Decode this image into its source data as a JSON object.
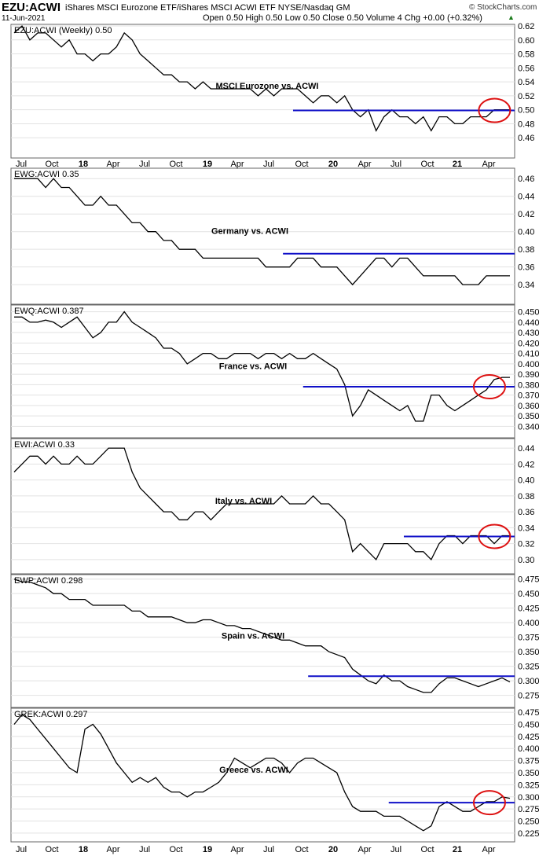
{
  "header": {
    "symbol": "EZU:ACWI",
    "description": "iShares MSCI Eurozone ETF/iShares MSCI ACWI ETF  NYSE/Nasdaq GM",
    "date": "11-Jun-2021",
    "ohlc": "Open 0.50   High 0.50   Low 0.50   Close 0.50   Volume 4   Chg +0.00 (+0.32%)",
    "brand": "© StockCharts.com",
    "change_icon": "up-triangle-icon"
  },
  "colors": {
    "price": "#000000",
    "resistance": "#1010c8",
    "highlight": "#dd1111",
    "grid": "#e2e2e2",
    "border": "#666666"
  },
  "x_axis_labels": [
    "Jul",
    "Oct",
    "18",
    "Apr",
    "Jul",
    "Oct",
    "19",
    "Apr",
    "Jul",
    "Oct",
    "20",
    "Apr",
    "Jul",
    "Oct",
    "21",
    "Apr"
  ],
  "chart_data": [
    {
      "type": "line",
      "legend": "EZU:ACWI (Weekly) 0.50",
      "title": "MSCI Eurozone vs. ACWI",
      "ylim": [
        0.44,
        0.62
      ],
      "yticks": [
        "0.62",
        "0.60",
        "0.58",
        "0.56",
        "0.54",
        "0.52",
        "0.50",
        "0.48",
        "0.46"
      ],
      "values": [
        0.61,
        0.62,
        0.6,
        0.61,
        0.61,
        0.6,
        0.59,
        0.6,
        0.58,
        0.58,
        0.57,
        0.58,
        0.58,
        0.59,
        0.61,
        0.6,
        0.58,
        0.57,
        0.56,
        0.55,
        0.55,
        0.54,
        0.54,
        0.53,
        0.54,
        0.53,
        0.53,
        0.53,
        0.53,
        0.53,
        0.53,
        0.52,
        0.53,
        0.52,
        0.53,
        0.53,
        0.53,
        0.52,
        0.51,
        0.52,
        0.52,
        0.51,
        0.52,
        0.5,
        0.49,
        0.5,
        0.47,
        0.49,
        0.5,
        0.49,
        0.49,
        0.48,
        0.49,
        0.47,
        0.49,
        0.49,
        0.48,
        0.48,
        0.49,
        0.49,
        0.49,
        0.5,
        0.5,
        0.5
      ],
      "resistance": {
        "from": 0.56,
        "to": 1.0,
        "value": 0.499
      },
      "highlight_at": 0.96
    },
    {
      "type": "line",
      "legend": "EWG:ACWI 0.35",
      "title": "Germany vs. ACWI",
      "ylim": [
        0.325,
        0.47
      ],
      "yticks": [
        "0.46",
        "0.44",
        "0.42",
        "0.40",
        "0.38",
        "0.36",
        "0.34"
      ],
      "values": [
        0.46,
        0.46,
        0.46,
        0.46,
        0.45,
        0.46,
        0.45,
        0.45,
        0.44,
        0.43,
        0.43,
        0.44,
        0.43,
        0.43,
        0.42,
        0.41,
        0.41,
        0.4,
        0.4,
        0.39,
        0.39,
        0.38,
        0.38,
        0.38,
        0.37,
        0.37,
        0.37,
        0.37,
        0.37,
        0.37,
        0.37,
        0.37,
        0.36,
        0.36,
        0.36,
        0.36,
        0.37,
        0.37,
        0.37,
        0.36,
        0.36,
        0.36,
        0.35,
        0.34,
        0.35,
        0.36,
        0.37,
        0.37,
        0.36,
        0.37,
        0.37,
        0.36,
        0.35,
        0.35,
        0.35,
        0.35,
        0.35,
        0.34,
        0.34,
        0.34,
        0.35,
        0.35,
        0.35,
        0.35
      ],
      "resistance": {
        "from": 0.54,
        "to": 1.0,
        "value": 0.375
      },
      "highlight_at": null
    },
    {
      "type": "line",
      "legend": "EWQ:ACWI 0.387",
      "title": "France vs. ACWI",
      "ylim": [
        0.335,
        0.455
      ],
      "yticks": [
        "0.450",
        "0.440",
        "0.430",
        "0.420",
        "0.410",
        "0.400",
        "0.390",
        "0.380",
        "0.370",
        "0.360",
        "0.350",
        "0.340"
      ],
      "values": [
        0.445,
        0.445,
        0.44,
        0.44,
        0.442,
        0.44,
        0.435,
        0.44,
        0.445,
        0.435,
        0.425,
        0.43,
        0.44,
        0.44,
        0.45,
        0.44,
        0.435,
        0.43,
        0.425,
        0.415,
        0.415,
        0.41,
        0.4,
        0.405,
        0.41,
        0.41,
        0.405,
        0.405,
        0.41,
        0.41,
        0.41,
        0.405,
        0.41,
        0.41,
        0.405,
        0.41,
        0.405,
        0.405,
        0.41,
        0.405,
        0.4,
        0.395,
        0.38,
        0.35,
        0.36,
        0.375,
        0.37,
        0.365,
        0.36,
        0.355,
        0.36,
        0.345,
        0.345,
        0.37,
        0.37,
        0.36,
        0.355,
        0.36,
        0.365,
        0.37,
        0.375,
        0.385,
        0.387,
        0.387
      ],
      "resistance": {
        "from": 0.58,
        "to": 1.0,
        "value": 0.378
      },
      "highlight_at": 0.95
    },
    {
      "type": "line",
      "legend": "EWI:ACWI 0.33",
      "title": "Italy vs. ACWI",
      "ylim": [
        0.29,
        0.45
      ],
      "yticks": [
        "0.44",
        "0.42",
        "0.40",
        "0.38",
        "0.36",
        "0.34",
        "0.32",
        "0.30"
      ],
      "values": [
        0.41,
        0.42,
        0.43,
        0.43,
        0.42,
        0.43,
        0.42,
        0.42,
        0.43,
        0.42,
        0.42,
        0.43,
        0.44,
        0.44,
        0.44,
        0.41,
        0.39,
        0.38,
        0.37,
        0.36,
        0.36,
        0.35,
        0.35,
        0.36,
        0.36,
        0.35,
        0.36,
        0.37,
        0.37,
        0.37,
        0.37,
        0.37,
        0.37,
        0.37,
        0.38,
        0.37,
        0.37,
        0.37,
        0.38,
        0.37,
        0.37,
        0.36,
        0.35,
        0.31,
        0.32,
        0.31,
        0.3,
        0.32,
        0.32,
        0.32,
        0.32,
        0.31,
        0.31,
        0.3,
        0.32,
        0.33,
        0.33,
        0.32,
        0.33,
        0.33,
        0.33,
        0.32,
        0.33,
        0.33
      ],
      "resistance": {
        "from": 0.78,
        "to": 1.0,
        "value": 0.329
      },
      "highlight_at": 0.96
    },
    {
      "type": "line",
      "legend": "EWP:ACWI 0.298",
      "title": "Spain vs. ACWI",
      "ylim": [
        0.265,
        0.48
      ],
      "yticks": [
        "0.475",
        "0.450",
        "0.425",
        "0.400",
        "0.375",
        "0.350",
        "0.325",
        "0.300",
        "0.275"
      ],
      "values": [
        0.475,
        0.47,
        0.47,
        0.465,
        0.46,
        0.45,
        0.45,
        0.44,
        0.44,
        0.44,
        0.43,
        0.43,
        0.43,
        0.43,
        0.43,
        0.42,
        0.42,
        0.41,
        0.41,
        0.41,
        0.41,
        0.405,
        0.4,
        0.4,
        0.405,
        0.405,
        0.4,
        0.395,
        0.395,
        0.39,
        0.39,
        0.385,
        0.38,
        0.375,
        0.37,
        0.37,
        0.365,
        0.36,
        0.36,
        0.36,
        0.35,
        0.345,
        0.34,
        0.32,
        0.31,
        0.3,
        0.295,
        0.31,
        0.3,
        0.3,
        0.29,
        0.285,
        0.28,
        0.28,
        0.295,
        0.305,
        0.305,
        0.3,
        0.295,
        0.29,
        0.295,
        0.3,
        0.305,
        0.298
      ],
      "resistance": {
        "from": 0.59,
        "to": 1.0,
        "value": 0.308
      },
      "highlight_at": null
    },
    {
      "type": "line",
      "legend": "GREK:ACWI 0.297",
      "title": "Greece vs. ACWI",
      "ylim": [
        0.22,
        0.48
      ],
      "yticks": [
        "0.475",
        "0.450",
        "0.425",
        "0.400",
        "0.375",
        "0.350",
        "0.325",
        "0.300",
        "0.275",
        "0.250",
        "0.225"
      ],
      "values": [
        0.45,
        0.47,
        0.46,
        0.44,
        0.42,
        0.4,
        0.38,
        0.36,
        0.35,
        0.44,
        0.45,
        0.43,
        0.4,
        0.37,
        0.35,
        0.33,
        0.34,
        0.33,
        0.34,
        0.32,
        0.31,
        0.31,
        0.3,
        0.31,
        0.31,
        0.32,
        0.33,
        0.35,
        0.38,
        0.37,
        0.36,
        0.37,
        0.38,
        0.38,
        0.37,
        0.35,
        0.37,
        0.38,
        0.38,
        0.37,
        0.36,
        0.35,
        0.31,
        0.28,
        0.27,
        0.27,
        0.27,
        0.26,
        0.26,
        0.26,
        0.25,
        0.24,
        0.23,
        0.24,
        0.28,
        0.29,
        0.28,
        0.27,
        0.27,
        0.28,
        0.29,
        0.29,
        0.3,
        0.297
      ],
      "resistance": {
        "from": 0.75,
        "to": 1.0,
        "value": 0.288
      },
      "highlight_at": 0.95
    }
  ]
}
